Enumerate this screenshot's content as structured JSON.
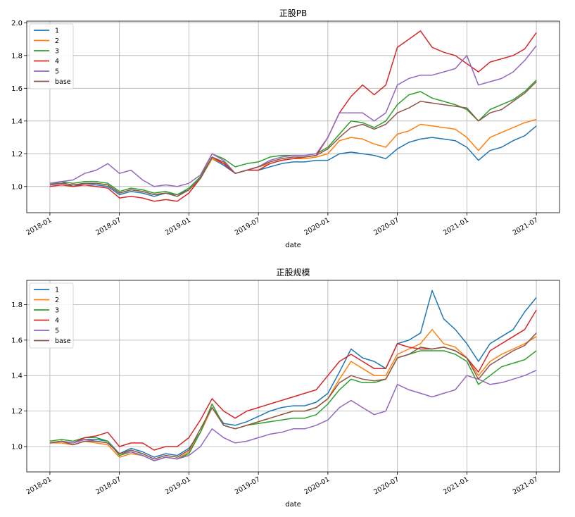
{
  "colors": {
    "1": "#1f77b4",
    "2": "#ff7f0e",
    "3": "#2ca02c",
    "4": "#d62728",
    "5": "#9467bd",
    "base": "#8c564b",
    "grid": "#b0b0b0"
  },
  "chart_data": [
    {
      "type": "line",
      "title": "正股PB",
      "xlabel": "date",
      "ylabel": "",
      "grid": true,
      "legend": "top-left",
      "xlim": [
        "2017-11",
        "2021-09"
      ],
      "ylim": [
        0.84,
        2.01
      ],
      "xticks": [
        "2018-01",
        "2018-07",
        "2019-01",
        "2019-07",
        "2020-01",
        "2020-07",
        "2021-01",
        "2021-07"
      ],
      "yticks": [
        "1.0",
        "1.2",
        "1.4",
        "1.6",
        "1.8",
        "2.0"
      ],
      "x_start": "2018-01",
      "x_step": "1 month",
      "series": [
        {
          "name": "1",
          "values": [
            1.01,
            1.03,
            1.0,
            1.02,
            1.01,
            1.0,
            0.95,
            0.97,
            0.96,
            0.94,
            0.96,
            0.95,
            0.98,
            1.05,
            1.17,
            1.13,
            1.08,
            1.1,
            1.1,
            1.12,
            1.14,
            1.15,
            1.15,
            1.16,
            1.16,
            1.2,
            1.21,
            1.2,
            1.19,
            1.17,
            1.23,
            1.27,
            1.29,
            1.3,
            1.29,
            1.28,
            1.24,
            1.16,
            1.22,
            1.24,
            1.28,
            1.31,
            1.37
          ]
        },
        {
          "name": "2",
          "values": [
            1.01,
            1.02,
            1.01,
            1.02,
            1.02,
            1.01,
            0.96,
            0.98,
            0.97,
            0.95,
            0.96,
            0.94,
            0.98,
            1.05,
            1.17,
            1.14,
            1.08,
            1.1,
            1.12,
            1.14,
            1.16,
            1.17,
            1.17,
            1.18,
            1.2,
            1.28,
            1.3,
            1.29,
            1.26,
            1.24,
            1.32,
            1.34,
            1.38,
            1.37,
            1.36,
            1.35,
            1.3,
            1.22,
            1.3,
            1.33,
            1.36,
            1.39,
            1.41
          ]
        },
        {
          "name": "3",
          "values": [
            1.02,
            1.03,
            1.02,
            1.03,
            1.03,
            1.02,
            0.97,
            0.99,
            0.98,
            0.96,
            0.97,
            0.95,
            0.99,
            1.06,
            1.2,
            1.17,
            1.12,
            1.14,
            1.15,
            1.18,
            1.19,
            1.19,
            1.19,
            1.2,
            1.24,
            1.32,
            1.4,
            1.39,
            1.36,
            1.4,
            1.5,
            1.56,
            1.58,
            1.54,
            1.52,
            1.5,
            1.47,
            1.4,
            1.47,
            1.5,
            1.53,
            1.58,
            1.65
          ]
        },
        {
          "name": "4",
          "values": [
            1.0,
            1.01,
            1.0,
            1.01,
            1.0,
            0.99,
            0.93,
            0.94,
            0.93,
            0.91,
            0.92,
            0.91,
            0.96,
            1.05,
            1.18,
            1.14,
            1.08,
            1.1,
            1.1,
            1.14,
            1.16,
            1.17,
            1.18,
            1.19,
            1.3,
            1.45,
            1.55,
            1.62,
            1.56,
            1.62,
            1.85,
            1.9,
            1.95,
            1.85,
            1.82,
            1.8,
            1.75,
            1.7,
            1.76,
            1.78,
            1.8,
            1.84,
            1.94
          ]
        },
        {
          "name": "5",
          "values": [
            1.02,
            1.03,
            1.04,
            1.08,
            1.1,
            1.14,
            1.08,
            1.1,
            1.04,
            1.0,
            1.01,
            1.0,
            1.02,
            1.07,
            1.2,
            1.16,
            1.08,
            1.1,
            1.12,
            1.16,
            1.18,
            1.19,
            1.19,
            1.2,
            1.3,
            1.45,
            1.45,
            1.45,
            1.4,
            1.45,
            1.62,
            1.66,
            1.68,
            1.68,
            1.7,
            1.72,
            1.8,
            1.62,
            1.64,
            1.66,
            1.7,
            1.77,
            1.86
          ]
        },
        {
          "name": "base",
          "values": [
            1.01,
            1.02,
            1.01,
            1.02,
            1.02,
            1.01,
            0.96,
            0.98,
            0.97,
            0.95,
            0.96,
            0.94,
            0.98,
            1.05,
            1.18,
            1.15,
            1.08,
            1.1,
            1.12,
            1.15,
            1.17,
            1.18,
            1.18,
            1.19,
            1.23,
            1.3,
            1.36,
            1.38,
            1.35,
            1.38,
            1.45,
            1.48,
            1.52,
            1.51,
            1.5,
            1.49,
            1.48,
            1.4,
            1.45,
            1.47,
            1.52,
            1.57,
            1.64
          ]
        }
      ]
    },
    {
      "type": "line",
      "title": "正股规模",
      "xlabel": "date",
      "ylabel": "",
      "grid": true,
      "legend": "top-left",
      "xlim": [
        "2017-11",
        "2021-09"
      ],
      "ylim": [
        0.857,
        1.937
      ],
      "xticks": [
        "2018-01",
        "2018-07",
        "2019-01",
        "2019-07",
        "2020-01",
        "2020-07",
        "2021-01",
        "2021-07"
      ],
      "yticks": [
        "1.0",
        "1.2",
        "1.4",
        "1.6",
        "1.8"
      ],
      "x_start": "2018-01",
      "x_step": "1 month",
      "series": [
        {
          "name": "1",
          "values": [
            1.02,
            1.03,
            1.02,
            1.04,
            1.04,
            1.03,
            0.96,
            0.99,
            0.97,
            0.94,
            0.96,
            0.95,
            0.99,
            1.08,
            1.22,
            1.13,
            1.12,
            1.14,
            1.17,
            1.2,
            1.22,
            1.23,
            1.23,
            1.25,
            1.3,
            1.42,
            1.55,
            1.5,
            1.48,
            1.44,
            1.58,
            1.6,
            1.64,
            1.88,
            1.72,
            1.66,
            1.58,
            1.48,
            1.58,
            1.62,
            1.66,
            1.76,
            1.84
          ]
        },
        {
          "name": "2",
          "values": [
            1.02,
            1.02,
            1.01,
            1.03,
            1.02,
            1.01,
            0.94,
            0.96,
            0.95,
            0.92,
            0.94,
            0.93,
            0.97,
            1.08,
            1.22,
            1.12,
            1.1,
            1.12,
            1.14,
            1.16,
            1.18,
            1.2,
            1.2,
            1.22,
            1.27,
            1.38,
            1.48,
            1.44,
            1.4,
            1.4,
            1.52,
            1.55,
            1.58,
            1.66,
            1.58,
            1.56,
            1.5,
            1.4,
            1.48,
            1.52,
            1.55,
            1.58,
            1.62
          ]
        },
        {
          "name": "3",
          "values": [
            1.03,
            1.04,
            1.03,
            1.05,
            1.05,
            1.03,
            0.95,
            0.97,
            0.95,
            0.92,
            0.94,
            0.93,
            0.96,
            1.08,
            1.24,
            1.12,
            1.1,
            1.12,
            1.13,
            1.14,
            1.15,
            1.16,
            1.16,
            1.18,
            1.24,
            1.32,
            1.38,
            1.36,
            1.36,
            1.38,
            1.5,
            1.52,
            1.54,
            1.54,
            1.54,
            1.52,
            1.48,
            1.35,
            1.4,
            1.45,
            1.47,
            1.49,
            1.54
          ]
        },
        {
          "name": "4",
          "values": [
            1.02,
            1.03,
            1.02,
            1.05,
            1.06,
            1.08,
            1.0,
            1.02,
            1.02,
            0.98,
            1.0,
            1.0,
            1.05,
            1.15,
            1.27,
            1.2,
            1.16,
            1.2,
            1.22,
            1.24,
            1.26,
            1.28,
            1.3,
            1.32,
            1.4,
            1.48,
            1.52,
            1.48,
            1.44,
            1.44,
            1.58,
            1.56,
            1.55,
            1.55,
            1.56,
            1.54,
            1.5,
            1.42,
            1.54,
            1.58,
            1.62,
            1.66,
            1.77
          ]
        },
        {
          "name": "5",
          "values": [
            1.02,
            1.03,
            1.02,
            1.04,
            1.03,
            1.02,
            0.96,
            0.97,
            0.95,
            0.92,
            0.94,
            0.93,
            0.95,
            1.0,
            1.1,
            1.05,
            1.02,
            1.03,
            1.05,
            1.07,
            1.08,
            1.1,
            1.1,
            1.12,
            1.15,
            1.22,
            1.26,
            1.22,
            1.18,
            1.2,
            1.35,
            1.32,
            1.3,
            1.28,
            1.3,
            1.32,
            1.4,
            1.38,
            1.35,
            1.36,
            1.38,
            1.4,
            1.43
          ]
        },
        {
          "name": "base",
          "values": [
            1.02,
            1.03,
            1.01,
            1.03,
            1.03,
            1.02,
            0.96,
            0.98,
            0.96,
            0.93,
            0.95,
            0.94,
            0.98,
            1.1,
            1.22,
            1.12,
            1.1,
            1.12,
            1.14,
            1.16,
            1.18,
            1.2,
            1.2,
            1.22,
            1.27,
            1.36,
            1.4,
            1.38,
            1.37,
            1.38,
            1.5,
            1.52,
            1.56,
            1.55,
            1.56,
            1.54,
            1.5,
            1.38,
            1.46,
            1.5,
            1.54,
            1.57,
            1.64
          ]
        }
      ]
    }
  ]
}
